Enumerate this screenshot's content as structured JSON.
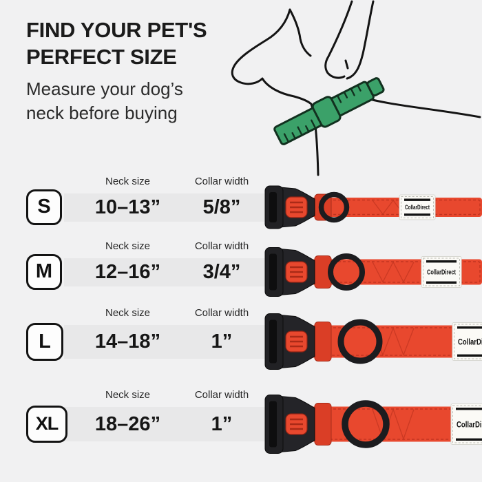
{
  "page": {
    "title_line1": "FIND YOUR PET'S",
    "title_line2": "PERFECT SIZE",
    "subtitle_line1": "Measure your dog’s",
    "subtitle_line2": "neck before buying"
  },
  "size_table": {
    "neck_header": "Neck size",
    "collar_header": "Collar width",
    "rows": [
      {
        "size": "S",
        "neck_size": "10–13”",
        "collar_width": "5/8”"
      },
      {
        "size": "M",
        "neck_size": "12–16”",
        "collar_width": "3/4”"
      },
      {
        "size": "L",
        "neck_size": "14–18”",
        "collar_width": "1”"
      },
      {
        "size": "XL",
        "neck_size": "18–26”",
        "collar_width": "1”"
      }
    ]
  },
  "brand": {
    "collar_label": "CollarDirect"
  },
  "colors": {
    "background": "#f1f1f2",
    "row_band": "#e8e8e9",
    "text": "#1a1a1a",
    "collar_red": "#e8482e",
    "buckle_black": "#202023",
    "tape_green": "#3ba169",
    "label_white": "#fbfaf6"
  }
}
